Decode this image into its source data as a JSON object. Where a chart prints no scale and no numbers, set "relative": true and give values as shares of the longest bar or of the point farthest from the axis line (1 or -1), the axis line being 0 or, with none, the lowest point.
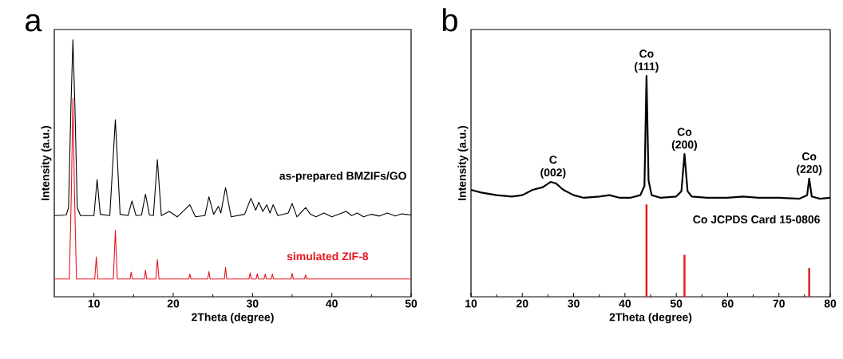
{
  "chart_data": [
    {
      "type": "line",
      "relative": true,
      "title": "a",
      "xlabel": "2Theta (degree)",
      "ylabel": "Intensity (a.u.)",
      "xlim": [
        5,
        50
      ],
      "xticks": [
        10,
        20,
        30,
        40,
        50
      ],
      "series": [
        {
          "name": "as-prepared BMZIFs/GO",
          "color": "#000000",
          "x": [
            5,
            6.5,
            6.8,
            7.1,
            7.35,
            7.6,
            7.9,
            8.3,
            10.0,
            10.4,
            10.8,
            12.0,
            12.7,
            13.3,
            14.3,
            14.8,
            15.3,
            16.0,
            16.5,
            17.0,
            17.5,
            18.0,
            18.5,
            19.5,
            20.5,
            22.1,
            22.8,
            24.0,
            24.5,
            25.1,
            25.7,
            26.0,
            26.6,
            27.3,
            29.0,
            29.8,
            30.4,
            30.8,
            31.3,
            31.8,
            32.2,
            32.6,
            33.2,
            34.5,
            35.0,
            35.6,
            36.7,
            37.3,
            38.0,
            39.0,
            40.0,
            41.8,
            42.5,
            43.2,
            44.0,
            45.0,
            46.0,
            47.0,
            48.0,
            48.8,
            50.0
          ],
          "values": [
            0.316,
            0.318,
            0.347,
            0.741,
            1,
            0.741,
            0.347,
            0.316,
            0.316,
            0.456,
            0.321,
            0.316,
            0.689,
            0.321,
            0.316,
            0.373,
            0.316,
            0.318,
            0.399,
            0.318,
            0.316,
            0.534,
            0.316,
            0.332,
            0.311,
            0.358,
            0.311,
            0.316,
            0.389,
            0.321,
            0.352,
            0.326,
            0.425,
            0.311,
            0.321,
            0.383,
            0.337,
            0.368,
            0.332,
            0.358,
            0.326,
            0.358,
            0.316,
            0.326,
            0.363,
            0.311,
            0.347,
            0.321,
            0.311,
            0.326,
            0.311,
            0.332,
            0.316,
            0.326,
            0.311,
            0.321,
            0.314,
            0.326,
            0.314,
            0.323,
            0.318
          ]
        },
        {
          "name": "simulated ZIF-8",
          "color": "#e8141e",
          "x": [
            5,
            6.9,
            7.15,
            7.35,
            7.55,
            7.8,
            10.1,
            10.3,
            10.5,
            12.45,
            12.7,
            12.95,
            14.55,
            14.7,
            14.85,
            16.35,
            16.5,
            16.65,
            17.8,
            18.0,
            18.2,
            21.95,
            22.1,
            22.25,
            24.35,
            24.5,
            24.65,
            26.45,
            26.6,
            26.75,
            29.55,
            29.7,
            29.85,
            30.45,
            30.6,
            30.75,
            31.45,
            31.6,
            31.75,
            32.35,
            32.5,
            32.65,
            34.85,
            35.0,
            35.15,
            36.55,
            36.7,
            36.85,
            50
          ],
          "values": [
            0.069,
            0.069,
            0.4,
            0.772,
            0.4,
            0.069,
            0.069,
            0.155,
            0.069,
            0.069,
            0.259,
            0.069,
            0.069,
            0.096,
            0.069,
            0.069,
            0.104,
            0.069,
            0.069,
            0.145,
            0.069,
            0.069,
            0.088,
            0.069,
            0.069,
            0.098,
            0.069,
            0.069,
            0.114,
            0.069,
            0.069,
            0.093,
            0.069,
            0.069,
            0.09,
            0.069,
            0.069,
            0.088,
            0.069,
            0.069,
            0.088,
            0.069,
            0.069,
            0.091,
            0.069,
            0.069,
            0.085,
            0.069,
            0.069
          ]
        }
      ]
    },
    {
      "type": "line",
      "relative": true,
      "title": "b",
      "xlabel": "2Theta (degree)",
      "ylabel": "Intensity (a.u.)",
      "xlim": [
        10,
        80
      ],
      "xticks": [
        10,
        20,
        30,
        40,
        50,
        60,
        70,
        80
      ],
      "annotations": [
        {
          "text": "C (002)",
          "x": 26,
          "y": 0.52
        },
        {
          "text": "Co (111)",
          "x": 44.2,
          "y": 1
        },
        {
          "text": "Co (200)",
          "x": 51.6,
          "y": 0.646
        },
        {
          "text": "Co (220)",
          "x": 75.9,
          "y": 0.535
        }
      ],
      "series": [
        {
          "color": "#000000",
          "x": [
            10,
            12,
            15,
            18,
            20,
            22,
            24,
            25.5,
            26.5,
            28,
            30,
            32,
            35,
            37,
            39,
            41,
            43,
            43.8,
            44.2,
            44.6,
            45.2,
            47,
            50,
            51,
            51.6,
            52.2,
            53,
            56,
            60,
            63,
            66,
            70,
            74,
            75.5,
            75.9,
            76.4,
            78,
            80
          ],
          "values": [
            0.484,
            0.472,
            0.46,
            0.454,
            0.46,
            0.484,
            0.496,
            0.52,
            0.514,
            0.484,
            0.46,
            0.448,
            0.454,
            0.46,
            0.448,
            0.448,
            0.46,
            0.502,
            1,
            0.526,
            0.46,
            0.448,
            0.454,
            0.478,
            0.646,
            0.478,
            0.454,
            0.448,
            0.448,
            0.454,
            0.448,
            0.448,
            0.444,
            0.46,
            0.535,
            0.454,
            0.444,
            0.448
          ]
        },
        {
          "type": "bar",
          "name": "Co JCPDS Card 15-0806",
          "color": "#e02020",
          "x": [
            44.2,
            51.6,
            75.9
          ],
          "values": [
            0.418,
            0.19,
            0.13
          ]
        }
      ]
    }
  ]
}
